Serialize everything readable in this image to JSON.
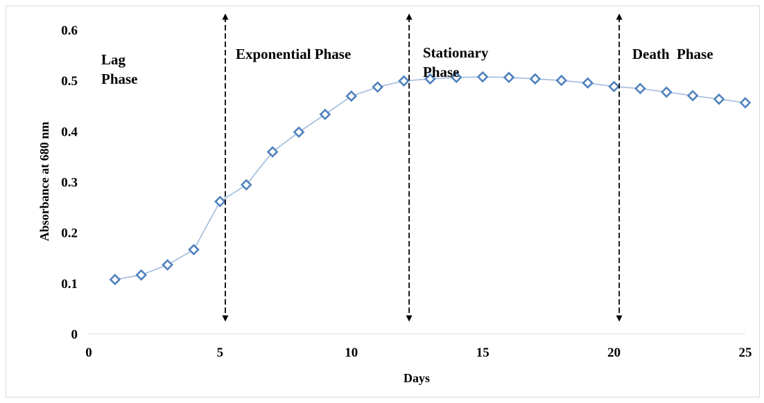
{
  "chart_data": {
    "type": "line",
    "xlabel": "Days",
    "ylabel": "Absorbance at 680 nm",
    "xlim": [
      0,
      25
    ],
    "ylim": [
      0,
      0.6
    ],
    "x_ticks": [
      "0",
      "5",
      "10",
      "15",
      "20",
      "25"
    ],
    "y_ticks": [
      "0",
      "0.1",
      "0.2",
      "0.3",
      "0.4",
      "0.5",
      "0.6"
    ],
    "grid": false,
    "series": [
      {
        "x": [
          1,
          2,
          3,
          4,
          5,
          6,
          7,
          8,
          9,
          10,
          11,
          12,
          13,
          14,
          15,
          16,
          17,
          18,
          19,
          20,
          21,
          22,
          23,
          24,
          25
        ],
        "values": [
          0.107,
          0.116,
          0.136,
          0.166,
          0.261,
          0.294,
          0.359,
          0.398,
          0.433,
          0.469,
          0.487,
          0.499,
          0.503,
          0.506,
          0.507,
          0.506,
          0.503,
          0.5,
          0.495,
          0.488,
          0.484,
          0.477,
          0.47,
          0.463,
          0.456
        ]
      }
    ],
    "line_color": "#9fbadc",
    "marker_color": "#4f81bd",
    "phase_dividers": [
      5.2,
      12.2,
      20.2
    ],
    "phase_labels": [
      {
        "lines": [
          "Lag",
          "Phase"
        ]
      },
      {
        "lines": [
          "Exponential Phase"
        ]
      },
      {
        "lines": [
          "Stationary",
          "Phase"
        ]
      },
      {
        "lines": [
          "Death  Phase"
        ]
      }
    ]
  }
}
